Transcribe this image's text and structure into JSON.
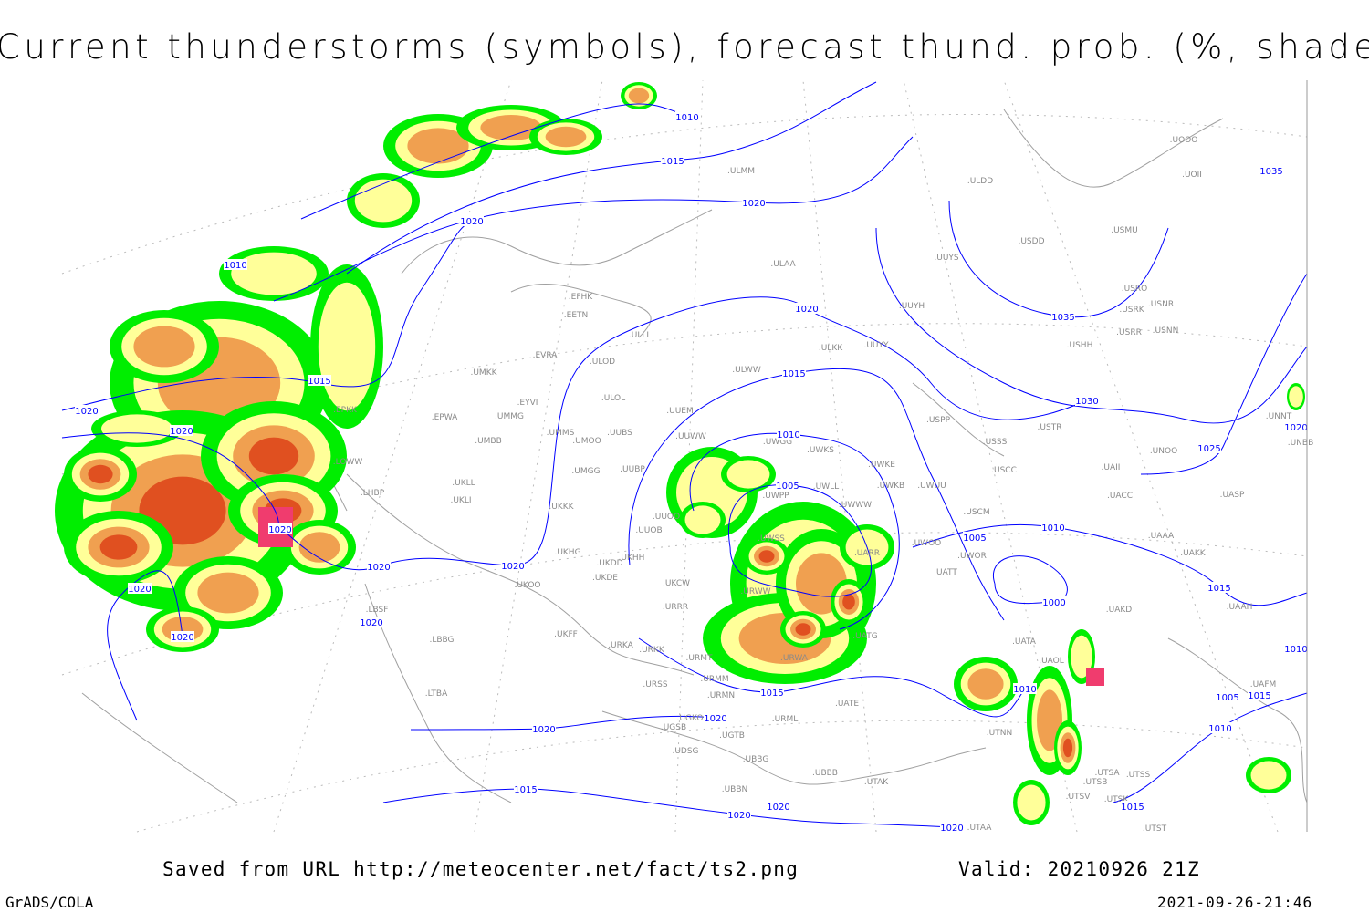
{
  "title": "Current thunderstorms (symbols), forecast thund. prob. (%, shaded)",
  "footer": {
    "saved_from": "Saved from URL http://meteocenter.net/fact/ts2.png",
    "valid": "Valid: 20210926 21Z",
    "software": "GrADS/COLA",
    "timestamp": "2021-09-26-21:46"
  },
  "colors": {
    "isobar": "#0000ff",
    "coastline": "#a0a0a0",
    "prob_low": "#00ee00",
    "prob_mid": "#ffff99",
    "prob_high": "#f0a050",
    "prob_max": "#e05020",
    "current_storm_symbol": "#f03c6e"
  },
  "isobar_labels": [
    "1010",
    "1015",
    "1020",
    "1020",
    "1010",
    "1015",
    "1020",
    "1020",
    "1020",
    "1020",
    "1020",
    "1020",
    "1020",
    "1020",
    "1020",
    "1015",
    "1010",
    "1005",
    "1035",
    "1035",
    "1030",
    "1025",
    "1020",
    "1010",
    "1005",
    "1000",
    "1015",
    "1010",
    "1015",
    "1020",
    "1020",
    "1015",
    "1020",
    "1020",
    "1020",
    "1015",
    "1010",
    "1005",
    "1015",
    "1010"
  ],
  "stations": [
    "ULMM",
    "ULAA",
    "EFHK",
    "EETN",
    "EVRA",
    "ULOD",
    "ULLI",
    "UMKK",
    "EYVI",
    "ULOL",
    "UMMG",
    "EPWA",
    "UUEM",
    "UMBB",
    "UMMS",
    "UMOO",
    "UUBS",
    "UUWW",
    "UWGG",
    "UWKS",
    "UWKE",
    "UWKB",
    "UWUU",
    "UWLL",
    "UWPP",
    "UWWW",
    "UKLL",
    "UKLI",
    "LHBP",
    "LOWW",
    "EPKK",
    "UMGG",
    "UUBP",
    "UKKK",
    "UUOB",
    "UUOO",
    "UWSS",
    "UARR",
    "UKHG",
    "UKDD",
    "UKHH",
    "UKDE",
    "UKOO",
    "UKCW",
    "URRR",
    "UKFF",
    "URKA",
    "URKK",
    "URMT",
    "URWW",
    "URWA",
    "UATG",
    "UATT",
    "UWOO",
    "UWOR",
    "USCM",
    "UAKD",
    "UATA",
    "UAOL",
    "URSS",
    "URMM",
    "URMN",
    "UATE",
    "URML",
    "UGKO",
    "UGSB",
    "UGTB",
    "UDSG",
    "UBBG",
    "UBBB",
    "UTAK",
    "UBBN",
    "UTNN",
    "UTSA",
    "UTSS",
    "UTSB",
    "UTSV",
    "UTSK",
    "UTST",
    "UTAA",
    "LTBA",
    "LBBG",
    "LBSF",
    "USSS",
    "USTR",
    "USPP",
    "USCC",
    "UACC",
    "UASP",
    "UAAA",
    "UAKK",
    "UAAH",
    "UAFM",
    "UNOO",
    "UNNT",
    "UNBB",
    "UOOO",
    "UOII",
    "USMU",
    "USDD",
    "UUYS",
    "UUYH",
    "USRO",
    "USRK",
    "USNR",
    "USRR",
    "USNN",
    "USHH",
    "ULKK",
    "UUYY",
    "ULWW",
    "ULDD",
    "UAII"
  ]
}
